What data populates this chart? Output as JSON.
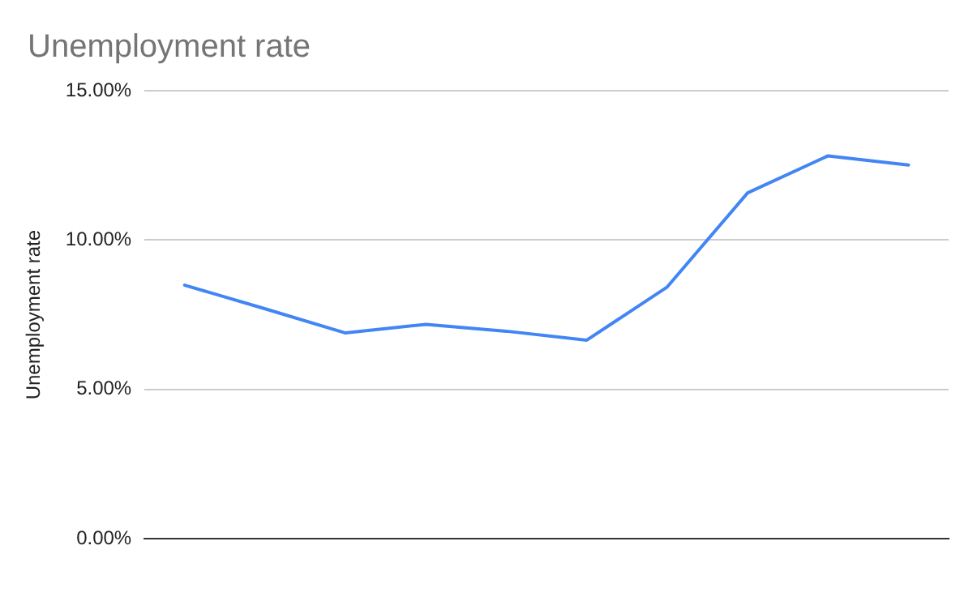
{
  "chart_data": {
    "type": "line",
    "title": "Unemployment rate",
    "ylabel": "Unemployment rate",
    "categories": [
      null,
      null,
      null,
      null,
      null,
      null,
      null,
      null,
      null,
      null
    ],
    "series": [
      {
        "color": "#4285f4",
        "values": [
          8.49,
          7.7,
          6.89,
          7.18,
          6.95,
          6.65,
          8.43,
          11.58,
          12.82,
          12.51
        ]
      }
    ],
    "ylim": [
      0,
      15
    ],
    "yticks": [
      {
        "value": 0,
        "label": "0.00%"
      },
      {
        "value": 5,
        "label": "5.00%"
      },
      {
        "value": 10,
        "label": "10.00%"
      },
      {
        "value": 15,
        "label": "15.00%"
      }
    ],
    "grid": "y",
    "legend": false,
    "marker": "none",
    "line_style": "solid"
  }
}
